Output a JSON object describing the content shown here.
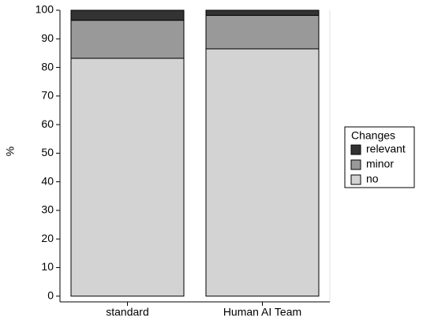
{
  "chart_data": {
    "type": "stacked_bar",
    "y_label": "%",
    "categories": [
      "standard",
      "Human AI Team"
    ],
    "series": [
      {
        "name": "no",
        "color": "#d3d3d3",
        "values": [
          83.2,
          86.5
        ]
      },
      {
        "name": "minor",
        "color": "#999999",
        "values": [
          13.3,
          11.7
        ]
      },
      {
        "name": "relevant",
        "color": "#333333",
        "values": [
          3.5,
          1.8
        ]
      }
    ],
    "ylim": [
      -2,
      100
    ],
    "yticks": [
      0,
      10,
      20,
      30,
      40,
      50,
      60,
      70,
      80,
      90,
      100
    ],
    "legend_title": "Changes",
    "legend_position": "right"
  }
}
